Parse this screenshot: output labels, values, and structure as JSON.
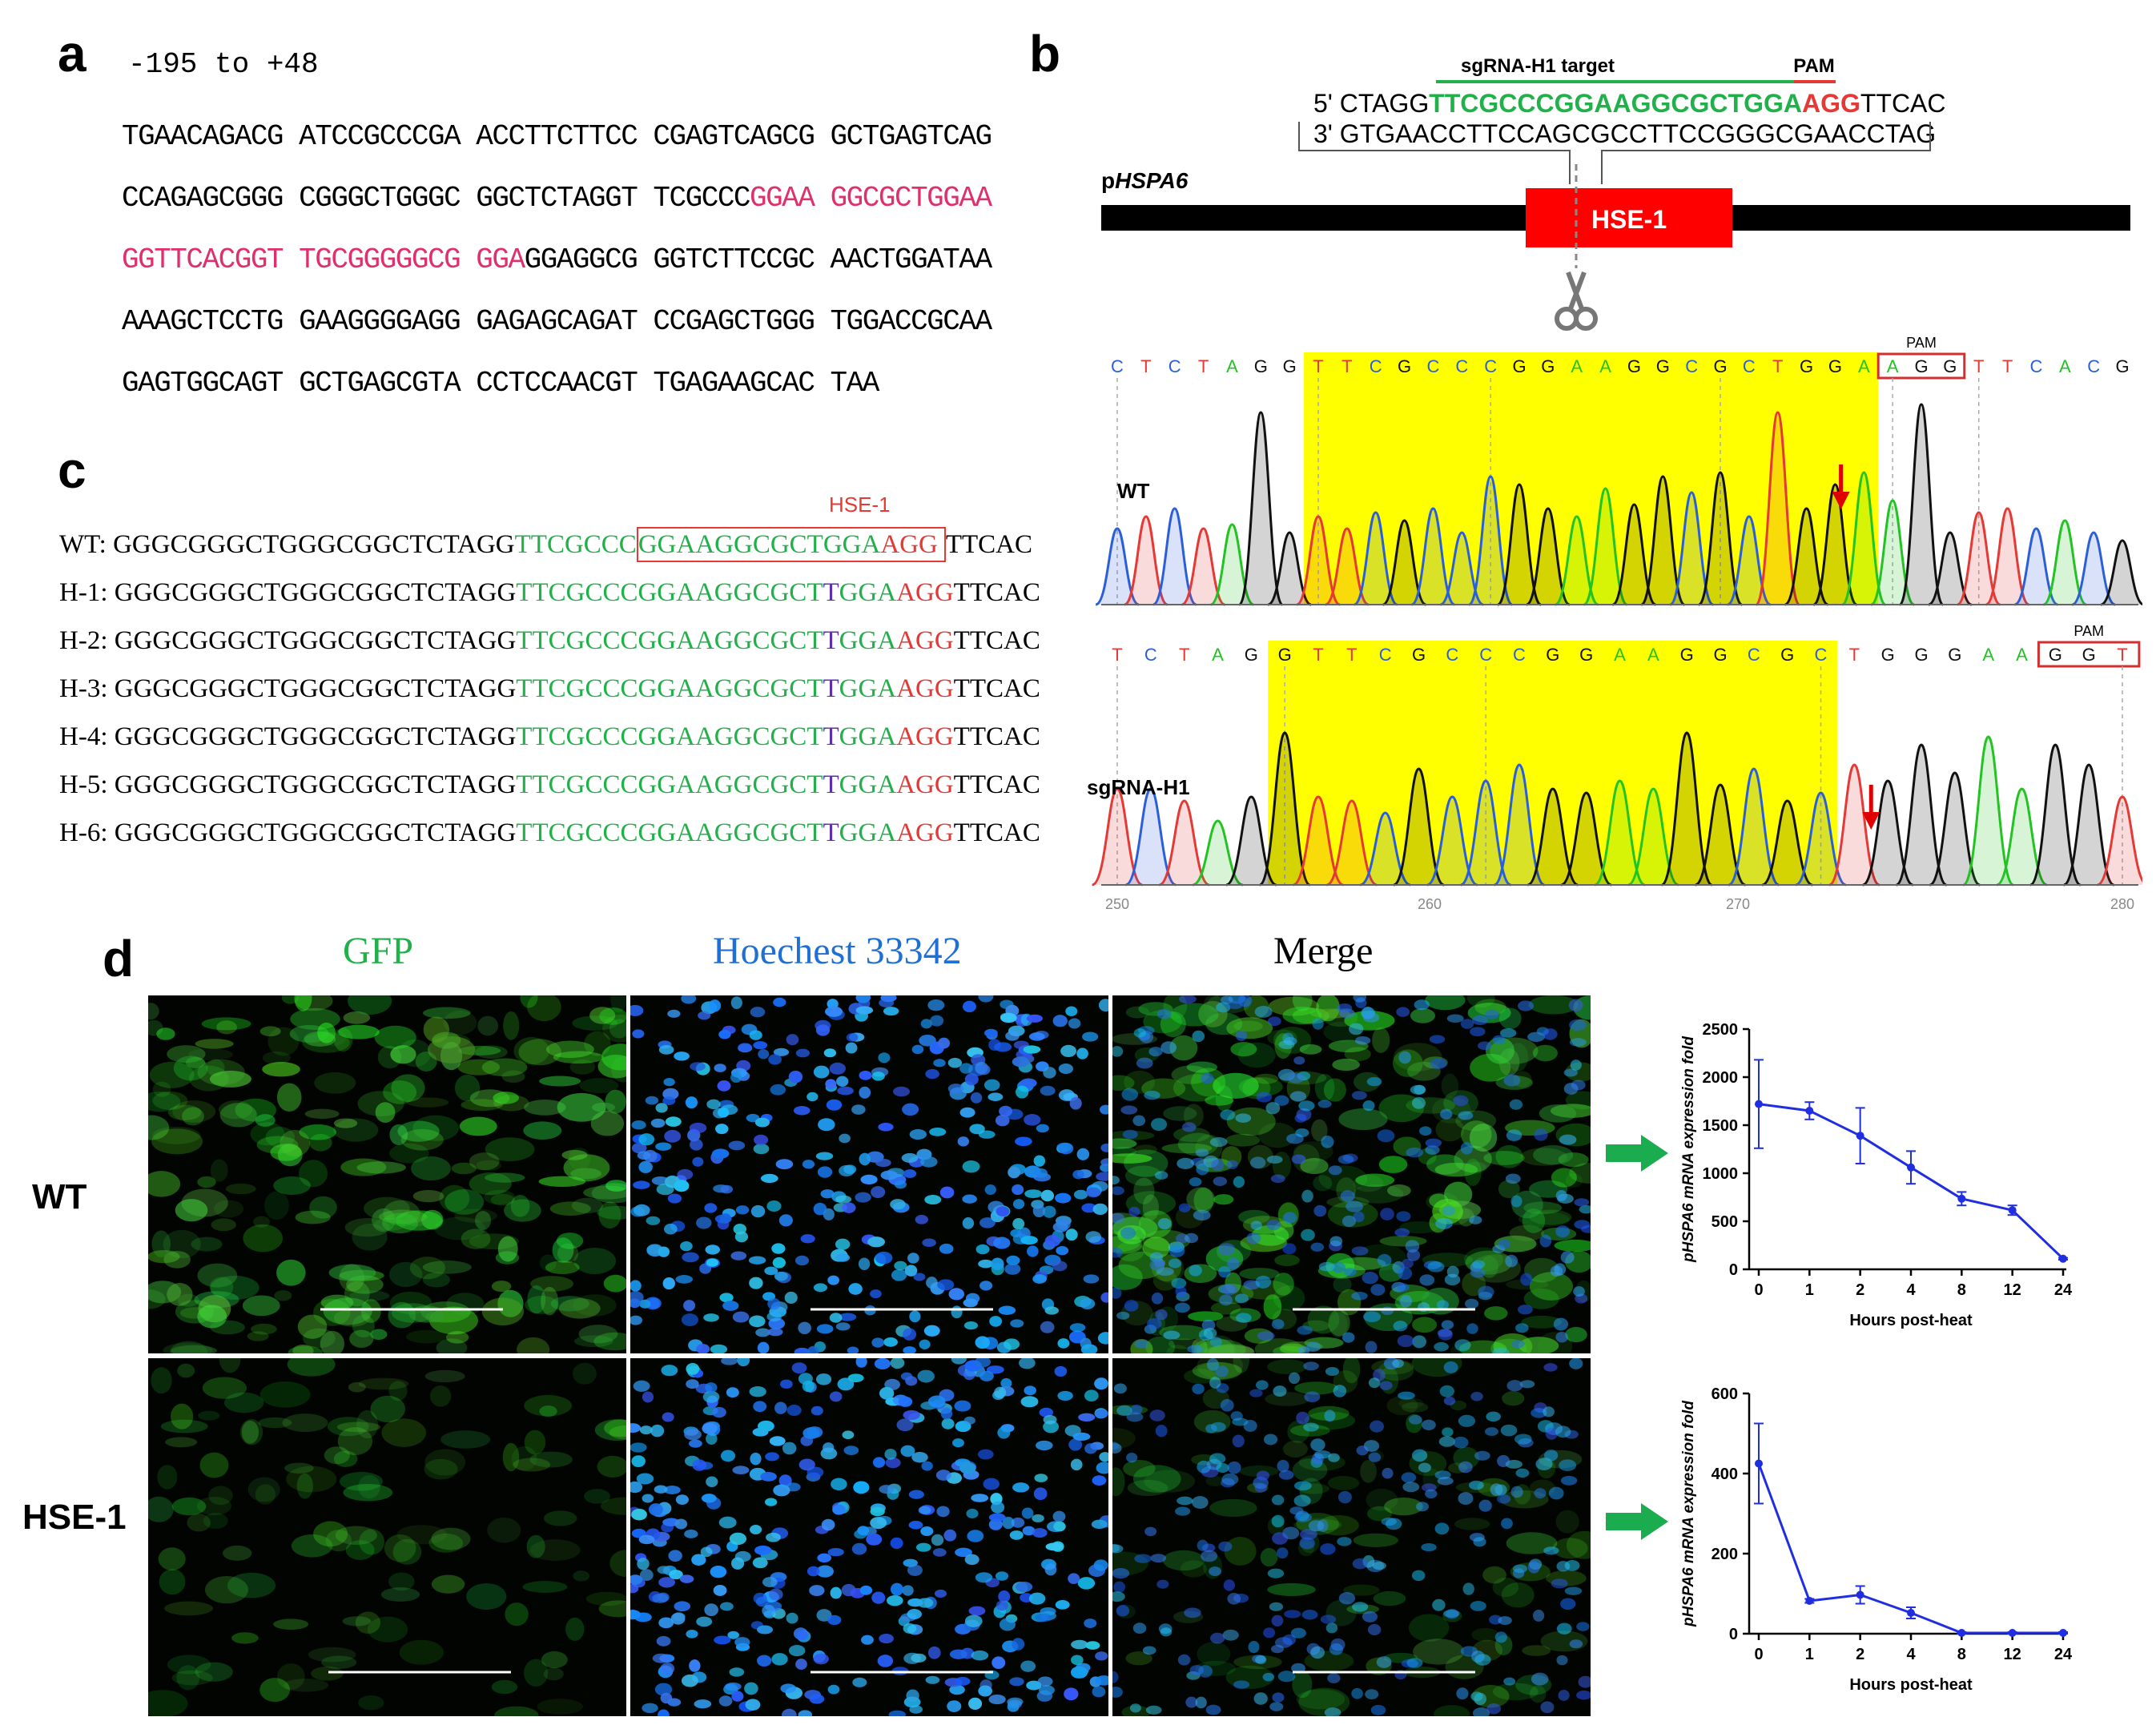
{
  "panel_a": {
    "label": "a",
    "range": "-195 to +48",
    "lines": [
      [
        {
          "t": "TGAACAGACG ATCCGCCCGA ACCTTCTTCC CGAGTCAGCG GCTGAGTCAG",
          "c": "black"
        }
      ],
      [
        {
          "t": "CCAGAGCGGG CGGGCTGGGC GGCTCTAGGT TCGCCC",
          "c": "black"
        },
        {
          "t": "GGAA GGCGCTGGAA",
          "c": "pink"
        }
      ],
      [
        {
          "t": "GGTTCACGGT TGCGGGGGCG GGA",
          "c": "pink"
        },
        {
          "t": "GGAGGCG GGTCTTCCGC AACTGGATAA",
          "c": "black"
        }
      ],
      [
        {
          "t": "AAAGCTCCTG GAAGGGGAGG GAGAGCAGAT CCGAGCTGGG TGGACCGCAA",
          "c": "black"
        }
      ],
      [
        {
          "t": "GAGTGGCAGT GCTGAGCGTA CCTCCAACGT TGAGAAGCAC TAA",
          "c": "black"
        }
      ]
    ]
  },
  "panel_b": {
    "label": "b",
    "target_label": "sgRNA-H1 target",
    "pam_label": "PAM",
    "strand5_prefix": "5' CTAGG",
    "strand5_target": "TTCGCCCGGAAGGCGCTGGA",
    "strand5_pam": "AGG",
    "strand5_suffix": "TTCAC",
    "strand3": "3' GTGAACCTTCCAGCGCCTTCCGGGCGAACCTAG",
    "promoter_prefix": "p",
    "promoter_name": "HSPA6",
    "hse_box": "HSE-1",
    "chrom_wt": {
      "row_label": "WT",
      "pam_label": "PAM",
      "bases": [
        "C",
        "T",
        "C",
        "T",
        "A",
        "G",
        "G",
        "T",
        "T",
        "C",
        "G",
        "C",
        "C",
        "C",
        "G",
        "G",
        "A",
        "A",
        "G",
        "G",
        "C",
        "G",
        "C",
        "T",
        "G",
        "G",
        "A",
        "A",
        "G",
        "G",
        "T",
        "T",
        "C",
        "A",
        "C",
        "G"
      ]
    },
    "chrom_h1": {
      "row_label": "sgRNA-H1",
      "pam_label": "PAM",
      "bases": [
        "T",
        "C",
        "T",
        "A",
        "G",
        "G",
        "T",
        "T",
        "C",
        "G",
        "C",
        "C",
        "C",
        "G",
        "G",
        "A",
        "A",
        "G",
        "G",
        "C",
        "G",
        "C",
        "T",
        "G",
        "G",
        "G",
        "A",
        "A",
        "G",
        "G",
        "T"
      ],
      "axis_ticks": [
        "250",
        "260",
        "270",
        "280"
      ]
    }
  },
  "panel_c": {
    "label": "c",
    "hse_label": "HSE-1",
    "rows": [
      {
        "name": "WT:",
        "a": "GGGCGGGCTGGGCGGCTCTAGG",
        "g": "TTCGCCC",
        "box": "GGAAGGCGCTGGA",
        "pam": "AGG",
        "end": "TTCAC"
      },
      {
        "name": "H-1:",
        "a": "GGGCGGGCTGGGCGGCTCTAGG",
        "g": "TTCGCCCGGAAGGCGCT",
        "ins": "T",
        "g2": "GGA",
        "pam": "AGG",
        "end": "TTCAC"
      },
      {
        "name": "H-2:",
        "a": "GGGCGGGCTGGGCGGCTCTAGG",
        "g": "TTCGCCCGGAAGGCGCT",
        "ins": "T",
        "g2": "GGA",
        "pam": "AGG",
        "end": "TTCAC"
      },
      {
        "name": "H-3:",
        "a": "GGGCGGGCTGGGCGGCTCTAGG",
        "g": "TTCGCCCGGAAGGCGCT",
        "ins": "T",
        "g2": "GGA",
        "pam": "AGG",
        "end": "TTCAC"
      },
      {
        "name": "H-4:",
        "a": "GGGCGGGCTGGGCGGCTCTAGG",
        "g": "TTCGCCCGGAAGGCGCT",
        "ins": "T",
        "g2": "GGA",
        "pam": "AGG",
        "end": "TTCAC"
      },
      {
        "name": "H-5:",
        "a": "GGGCGGGCTGGGCGGCTCTAGG",
        "g": "TTCGCCCGGAAGGCGCT",
        "ins": "T",
        "g2": "GGA",
        "pam": "AGG",
        "end": "TTCAC"
      },
      {
        "name": "H-6:",
        "a": "GGGCGGGCTGGGCGGCTCTAGG",
        "g": "TTCGCCCGGAAGGCGCT",
        "ins": "T",
        "g2": "GGA",
        "pam": "AGG",
        "end": "TTCAC"
      }
    ]
  },
  "panel_d": {
    "label": "d",
    "col_gfp": "GFP",
    "col_hoechst": "Hoechest 33342",
    "col_merge": "Merge",
    "row_wt": "WT",
    "row_hse": "HSE-1",
    "colors": {
      "gfp": "#22b04b",
      "hoechst": "#1e6fd6",
      "arrow": "#1aac4f",
      "line": "#1f2ee0"
    }
  },
  "chart_data": [
    {
      "type": "line",
      "title": "",
      "xlabel": "Hours post-heat",
      "ylabel_prefix": "p",
      "ylabel_gene": "HSPA6",
      "ylabel_suffix": " mRNA expression fold",
      "categories": [
        "0",
        "1",
        "2",
        "4",
        "8",
        "12",
        "24"
      ],
      "values": [
        1720,
        1650,
        1390,
        1060,
        735,
        615,
        110
      ],
      "errors": [
        460,
        90,
        290,
        170,
        70,
        50,
        10
      ],
      "ylim": [
        0,
        2500
      ],
      "yticks": [
        "0",
        "500",
        "1000",
        "1500",
        "2000",
        "2500"
      ]
    },
    {
      "type": "line",
      "title": "",
      "xlabel": "Hours post-heat",
      "ylabel_prefix": "p",
      "ylabel_gene": "HSPA6",
      "ylabel_suffix": " mRNA expression fold",
      "categories": [
        "0",
        "1",
        "2",
        "4",
        "8",
        "12",
        "24"
      ],
      "values": [
        425,
        82,
        97,
        52,
        2,
        2,
        2
      ],
      "errors": [
        100,
        5,
        22,
        14,
        2,
        2,
        2
      ],
      "ylim": [
        0,
        600
      ],
      "yticks": [
        "0",
        "200",
        "400",
        "600"
      ]
    }
  ]
}
